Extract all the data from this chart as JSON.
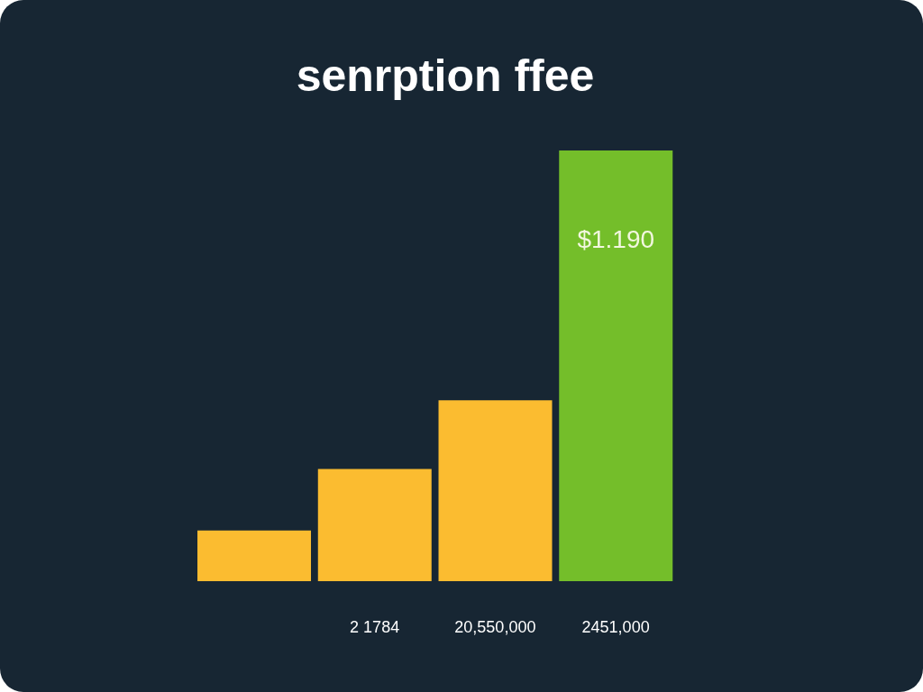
{
  "chart_data": {
    "type": "bar",
    "title": "senrption ffee",
    "categories": [
      null,
      "2 1784",
      "20,550,000",
      "2451,000"
    ],
    "values": [
      0.14,
      0.31,
      0.5,
      1.19
    ],
    "colors": [
      "#fbbc30",
      "#fbbc30",
      "#fbbc30",
      "#74be2a"
    ],
    "tick_labels": "x",
    "value_labels": [
      null,
      null,
      null,
      "$1.190"
    ]
  }
}
